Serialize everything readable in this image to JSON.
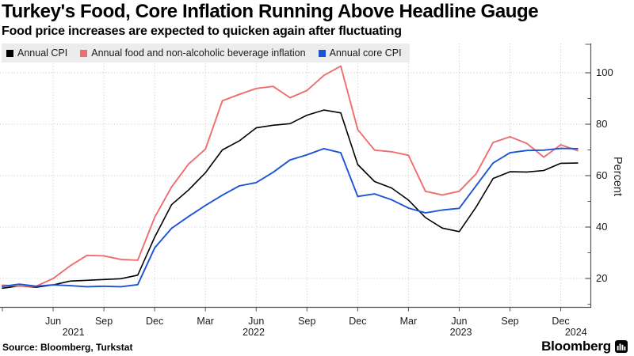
{
  "header": {
    "title": "Turkey's Food, Core Inflation Running Above Headline Gauge",
    "subtitle": "Food price increases are expected to quicken again after fluctuating"
  },
  "legend": {
    "items": [
      {
        "label": "Annual CPI",
        "color": "#000000"
      },
      {
        "label": "Annual food and non-alcoholic beverage inflation",
        "color": "#ee6d6f"
      },
      {
        "label": "Annual core CPI",
        "color": "#1b55d5"
      }
    ]
  },
  "chart_data": {
    "type": "line",
    "title": "Turkey's Food, Core Inflation Running Above Headline Gauge",
    "xlabel": "",
    "ylabel": "Percent",
    "ylim": [
      9,
      111
    ],
    "grid": "dotted horizontal and vertical",
    "legend_position": "top-left",
    "x": [
      "2021-03",
      "2021-04",
      "2021-05",
      "2021-06",
      "2021-07",
      "2021-08",
      "2021-09",
      "2021-10",
      "2021-11",
      "2021-12",
      "2022-01",
      "2022-02",
      "2022-03",
      "2022-04",
      "2022-05",
      "2022-06",
      "2022-07",
      "2022-08",
      "2022-09",
      "2022-10",
      "2022-11",
      "2022-12",
      "2023-01",
      "2023-02",
      "2023-03",
      "2023-04",
      "2023-05",
      "2023-06",
      "2023-07",
      "2023-08",
      "2023-09",
      "2023-10",
      "2023-11",
      "2023-12",
      "2024-01"
    ],
    "series": [
      {
        "name": "Annual CPI",
        "color": "#000000",
        "values": [
          16.2,
          17.1,
          16.6,
          17.5,
          19.0,
          19.3,
          19.6,
          19.9,
          21.3,
          36.1,
          48.7,
          54.4,
          61.1,
          70.0,
          73.5,
          78.6,
          79.6,
          80.2,
          83.5,
          85.5,
          84.4,
          64.3,
          57.7,
          55.2,
          50.5,
          43.7,
          39.6,
          38.2,
          47.8,
          58.9,
          61.5,
          61.4,
          62.0,
          64.8,
          64.9
        ]
      },
      {
        "name": "Annual food and non-alcoholic beverage inflation",
        "color": "#ee6d6f",
        "values": [
          17.4,
          17.0,
          17.0,
          20.0,
          24.9,
          29.0,
          28.8,
          27.4,
          27.1,
          43.8,
          55.6,
          64.5,
          70.3,
          89.1,
          91.6,
          93.9,
          94.7,
          90.3,
          93.1,
          99.0,
          102.6,
          77.9,
          69.9,
          69.3,
          67.9,
          53.9,
          52.5,
          53.9,
          60.7,
          72.9,
          75.1,
          72.5,
          67.2,
          72.0,
          69.7
        ]
      },
      {
        "name": "Annual core CPI",
        "color": "#1b55d5",
        "values": [
          16.9,
          17.8,
          17.0,
          17.5,
          17.2,
          16.8,
          17.0,
          16.8,
          17.6,
          31.9,
          39.5,
          44.1,
          48.4,
          52.4,
          56.0,
          57.3,
          61.3,
          66.1,
          68.1,
          70.5,
          68.9,
          51.9,
          52.9,
          50.6,
          47.4,
          45.5,
          46.6,
          47.3,
          56.1,
          64.9,
          68.9,
          69.8,
          69.9,
          70.6,
          70.5
        ]
      }
    ],
    "y_axis": {
      "side": "right",
      "label": "Percent",
      "ticks": [
        20,
        40,
        60,
        80,
        100
      ],
      "minor_ticks": [
        10,
        30,
        50,
        70,
        90
      ]
    },
    "x_axis": {
      "month_ticks": [
        {
          "label": "Jun",
          "month_index": 3
        },
        {
          "label": "Sep",
          "month_index": 6
        },
        {
          "label": "Dec",
          "month_index": 9
        },
        {
          "label": "Mar",
          "month_index": 12
        },
        {
          "label": "Jun",
          "month_index": 15
        },
        {
          "label": "Sep",
          "month_index": 18
        },
        {
          "label": "Dec",
          "month_index": 21
        },
        {
          "label": "Mar",
          "month_index": 24
        },
        {
          "label": "Jun",
          "month_index": 27
        },
        {
          "label": "Sep",
          "month_index": 30
        },
        {
          "label": "Dec",
          "month_index": 33
        }
      ],
      "edge_tick_month_index": 0,
      "year_labels": [
        {
          "label": "2021",
          "month_index": 4.2
        },
        {
          "label": "2022",
          "month_index": 14.85
        },
        {
          "label": "2023",
          "month_index": 27.1
        },
        {
          "label": "2024",
          "month_index": 33.9
        }
      ]
    }
  },
  "footer": {
    "source": "Source: Bloomberg, Turkstat",
    "brand": "Bloomberg",
    "brand_icon": "bloomberg-terminal-icon"
  },
  "colors": {
    "grid": "#c6c6c6",
    "axis": "#555555",
    "legend_bg": "#ececec"
  }
}
